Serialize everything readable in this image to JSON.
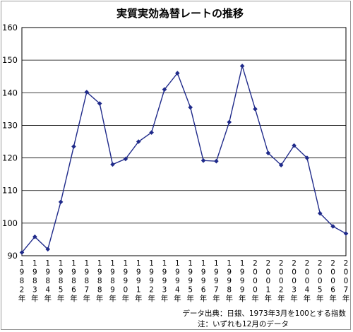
{
  "chart_data": {
    "type": "line",
    "title": "実質実効為替レートの推移",
    "categories": [
      "1982年",
      "1983年",
      "1984年",
      "1985年",
      "1986年",
      "1987年",
      "1988年",
      "1989年",
      "1990年",
      "1991年",
      "1992年",
      "1993年",
      "1994年",
      "1995年",
      "1996年",
      "1997年",
      "1998年",
      "1999年",
      "2000年",
      "2001年",
      "2002年",
      "2003年",
      "2004年",
      "2005年",
      "2006年",
      "2007年"
    ],
    "series": [
      {
        "values": [
          91.0,
          95.8,
          92.0,
          106.5,
          123.5,
          140.2,
          136.7,
          118.0,
          119.7,
          125.0,
          127.8,
          141.0,
          146.0,
          135.5,
          119.2,
          119.0,
          131.0,
          148.2,
          135.0,
          121.5,
          117.8,
          123.8,
          120.0,
          103.0,
          99.0,
          96.8
        ]
      }
    ],
    "ylim": [
      90,
      160
    ],
    "yticks": [
      90,
      100,
      110,
      120,
      130,
      140,
      150,
      160
    ],
    "grid": true,
    "line_color": "#1f2a8a",
    "grid_color": "#000000"
  },
  "notes": {
    "source": "データ出典：日銀、1973年3月を100とする指数",
    "footnote": "注：いずれも12月のデータ"
  }
}
